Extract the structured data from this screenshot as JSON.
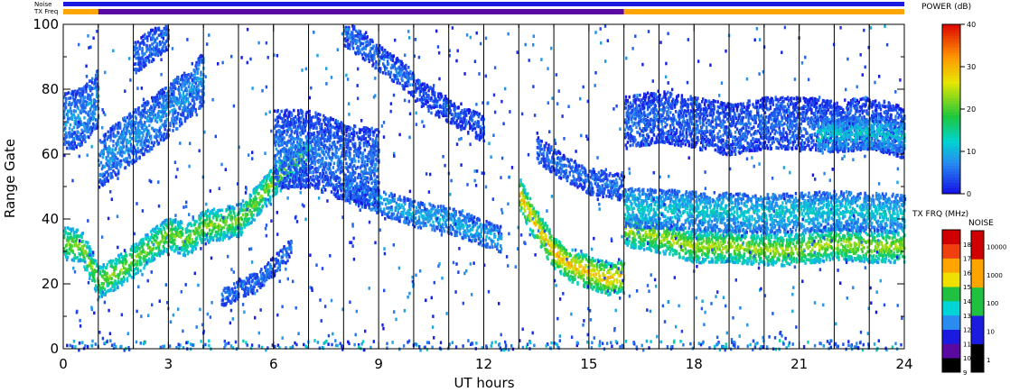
{
  "chart_data": {
    "type": "heatmap",
    "xlabel": "UT hours",
    "ylabel": "Range Gate",
    "xlim": [
      0,
      24
    ],
    "ylim": [
      0,
      100
    ],
    "x_ticks": [
      "0",
      "3",
      "6",
      "9",
      "12",
      "15",
      "18",
      "21",
      "24"
    ],
    "y_ticks": [
      "0",
      "20",
      "40",
      "60",
      "80",
      "100"
    ],
    "status_bars": {
      "noise_label": "Noise",
      "txfreq_label": "TX Freq",
      "noise_color": "#1a1ae0",
      "txfreq_segments": [
        {
          "from": 0,
          "to": 1,
          "color": "#ffa500"
        },
        {
          "from": 1,
          "to": 16,
          "color": "#5a0aa0"
        },
        {
          "from": 16,
          "to": 24,
          "color": "#ffa500"
        }
      ]
    },
    "scan_boundaries_hours": [
      1,
      2,
      3,
      4,
      5,
      6,
      7,
      8,
      9,
      10,
      11,
      12,
      13,
      14,
      15,
      16,
      17,
      18,
      19,
      20,
      21,
      22,
      23,
      24
    ],
    "power_colorbar": {
      "title": "POWER (dB)",
      "min": 0,
      "max": 40,
      "ticks": [
        "0",
        "10",
        "20",
        "30",
        "40"
      ]
    },
    "txfreq_colorbar": {
      "title": "TX FRQ (MHz)",
      "ticks": [
        "9",
        "10",
        "11",
        "12",
        "13",
        "14",
        "15",
        "16",
        "17",
        "18"
      ],
      "colors": [
        "#000000",
        "#5a0aa0",
        "#1a1ae0",
        "#2a8cf0",
        "#00d4d4",
        "#20c040",
        "#f0e000",
        "#ffa500",
        "#f04010",
        "#d00000"
      ]
    },
    "noise_colorbar": {
      "title": "NOISE",
      "ticks": [
        "1",
        "10",
        "100",
        "1000",
        "10000"
      ],
      "colors": [
        "#000000",
        "#1a1ae0",
        "#20c040",
        "#ffa500",
        "#d00000"
      ]
    },
    "echo_bands": [
      {
        "hours": [
          0,
          0.5,
          1,
          1.5,
          2,
          2.5,
          3,
          3.5,
          4,
          4.5,
          5,
          5.5,
          6,
          6.5,
          7
        ],
        "gate": [
          33,
          32,
          21,
          24,
          28,
          32,
          36,
          34,
          38,
          39,
          40,
          46,
          52,
          58,
          60
        ],
        "width": 5,
        "power": 22
      },
      {
        "hours": [
          8,
          9,
          10,
          11,
          12,
          12.5
        ],
        "gate": [
          50,
          46,
          42,
          40,
          36,
          34
        ],
        "width": 4,
        "power": 10
      },
      {
        "hours": [
          13,
          13.5,
          14,
          14.5,
          15,
          15.5,
          16
        ],
        "gate": [
          48,
          38,
          30,
          26,
          24,
          22,
          23
        ],
        "width": 5,
        "power": 30
      },
      {
        "hours": [
          16,
          17,
          18,
          19,
          20,
          21,
          22,
          23,
          24
        ],
        "gate": [
          37,
          35,
          32,
          32,
          31,
          31,
          33,
          32,
          32
        ],
        "width": 5,
        "power": 24
      },
      {
        "hours": [
          16,
          18,
          20,
          22,
          24
        ],
        "gate": [
          44,
          43,
          42,
          43,
          42
        ],
        "width": 6,
        "power": 12
      },
      {
        "hours": [
          0,
          0.5,
          1
        ],
        "gate": [
          70,
          72,
          78
        ],
        "width": 9,
        "power": 8
      },
      {
        "hours": [
          1,
          2,
          3,
          4
        ],
        "gate": [
          58,
          66,
          74,
          84
        ],
        "width": 8,
        "power": 8
      },
      {
        "hours": [
          2,
          2.5,
          3
        ],
        "gate": [
          90,
          94,
          98
        ],
        "width": 5,
        "power": 6
      },
      {
        "hours": [
          4.5,
          5,
          5.5,
          6,
          6.5
        ],
        "gate": [
          16,
          19,
          21,
          26,
          32
        ],
        "width": 3,
        "power": 6
      },
      {
        "hours": [
          6,
          7,
          8,
          9
        ],
        "gate": [
          62,
          62,
          58,
          56
        ],
        "width": 12,
        "power": 6
      },
      {
        "hours": [
          8,
          8.5,
          9,
          9.5,
          10
        ],
        "gate": [
          98,
          94,
          90,
          86,
          82
        ],
        "width": 4,
        "power": 6
      },
      {
        "hours": [
          10,
          11,
          12
        ],
        "gate": [
          80,
          74,
          68
        ],
        "width": 4,
        "power": 4
      },
      {
        "hours": [
          13.5,
          14,
          15,
          16
        ],
        "gate": [
          62,
          58,
          52,
          50
        ],
        "width": 4,
        "power": 6
      },
      {
        "hours": [
          16,
          17,
          18,
          19,
          20,
          21,
          22,
          23,
          24
        ],
        "gate": [
          70,
          72,
          70,
          68,
          70,
          70,
          69,
          70,
          67
        ],
        "width": 8,
        "power": 5
      },
      {
        "hours": [
          21.5,
          22,
          23,
          24
        ],
        "gate": [
          66,
          67,
          67,
          66
        ],
        "width": 5,
        "power": 12
      }
    ]
  }
}
